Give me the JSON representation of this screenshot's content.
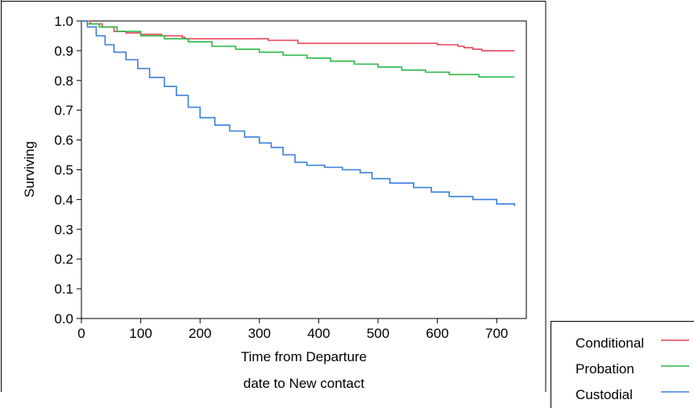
{
  "chart_data": {
    "type": "line",
    "step": true,
    "title": "",
    "xlabel_lines": [
      "Time from Departure",
      "date to New contact"
    ],
    "ylabel": "Surviving",
    "xlim": [
      0,
      750
    ],
    "ylim": [
      0,
      1.0
    ],
    "xticks": [
      0,
      100,
      200,
      300,
      400,
      500,
      600,
      700
    ],
    "yticks": [
      0.0,
      0.1,
      0.2,
      0.3,
      0.4,
      0.5,
      0.6,
      0.7,
      0.8,
      0.9,
      1.0
    ],
    "grid": false,
    "legend_position": "bottom-right",
    "series": [
      {
        "name": "Conditional",
        "color": "#e8475a",
        "points": [
          [
            0,
            1.0
          ],
          [
            15,
            0.99
          ],
          [
            35,
            0.98
          ],
          [
            55,
            0.965
          ],
          [
            75,
            0.96
          ],
          [
            100,
            0.955
          ],
          [
            135,
            0.95
          ],
          [
            170,
            0.945
          ],
          [
            175,
            0.94
          ],
          [
            260,
            0.94
          ],
          [
            315,
            0.935
          ],
          [
            365,
            0.925
          ],
          [
            590,
            0.925
          ],
          [
            600,
            0.92
          ],
          [
            635,
            0.915
          ],
          [
            645,
            0.91
          ],
          [
            660,
            0.905
          ],
          [
            675,
            0.9
          ],
          [
            730,
            0.9
          ]
        ]
      },
      {
        "name": "Probation",
        "color": "#2db84a",
        "points": [
          [
            0,
            1.0
          ],
          [
            10,
            0.99
          ],
          [
            30,
            0.98
          ],
          [
            60,
            0.965
          ],
          [
            100,
            0.95
          ],
          [
            140,
            0.94
          ],
          [
            180,
            0.93
          ],
          [
            220,
            0.915
          ],
          [
            260,
            0.905
          ],
          [
            300,
            0.895
          ],
          [
            340,
            0.885
          ],
          [
            380,
            0.875
          ],
          [
            420,
            0.865
          ],
          [
            460,
            0.855
          ],
          [
            500,
            0.845
          ],
          [
            540,
            0.835
          ],
          [
            580,
            0.828
          ],
          [
            620,
            0.82
          ],
          [
            670,
            0.812
          ],
          [
            730,
            0.812
          ]
        ]
      },
      {
        "name": "Custodial",
        "color": "#3a7fdc",
        "points": [
          [
            0,
            1.0
          ],
          [
            10,
            0.98
          ],
          [
            25,
            0.95
          ],
          [
            40,
            0.92
          ],
          [
            55,
            0.895
          ],
          [
            75,
            0.87
          ],
          [
            95,
            0.84
          ],
          [
            115,
            0.81
          ],
          [
            140,
            0.78
          ],
          [
            160,
            0.75
          ],
          [
            180,
            0.71
          ],
          [
            200,
            0.675
          ],
          [
            225,
            0.65
          ],
          [
            250,
            0.63
          ],
          [
            275,
            0.61
          ],
          [
            300,
            0.59
          ],
          [
            320,
            0.575
          ],
          [
            340,
            0.55
          ],
          [
            360,
            0.525
          ],
          [
            380,
            0.515
          ],
          [
            410,
            0.508
          ],
          [
            440,
            0.5
          ],
          [
            470,
            0.49
          ],
          [
            490,
            0.47
          ],
          [
            520,
            0.455
          ],
          [
            560,
            0.44
          ],
          [
            590,
            0.425
          ],
          [
            620,
            0.41
          ],
          [
            660,
            0.4
          ],
          [
            700,
            0.385
          ],
          [
            730,
            0.378
          ]
        ]
      }
    ]
  }
}
